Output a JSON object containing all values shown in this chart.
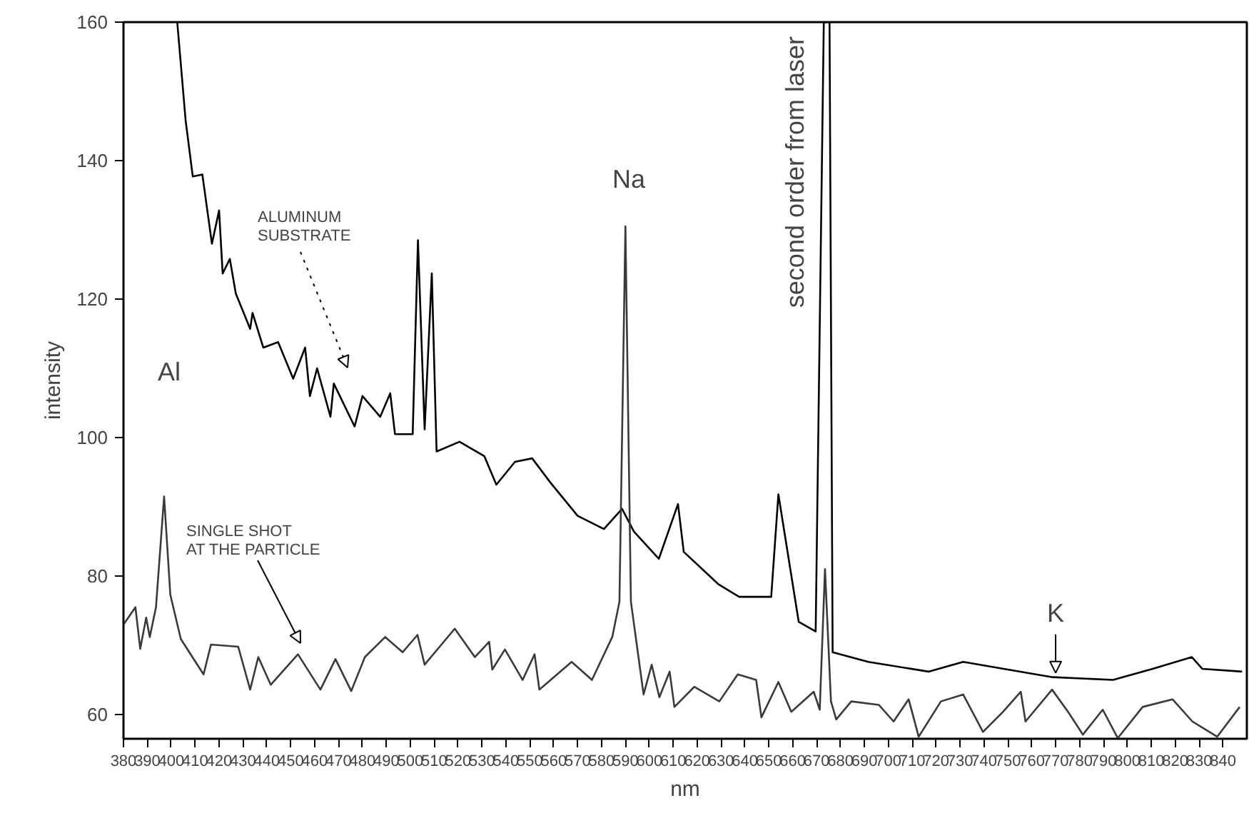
{
  "chart_data": {
    "type": "line",
    "xlabel": "nm",
    "ylabel": "intensity",
    "xlim": [
      380,
      850
    ],
    "ylim": [
      56.5,
      160
    ],
    "xticks": [
      380,
      390,
      400,
      410,
      420,
      430,
      440,
      450,
      460,
      470,
      480,
      490,
      500,
      510,
      520,
      530,
      540,
      550,
      560,
      570,
      580,
      590,
      600,
      610,
      620,
      630,
      640,
      650,
      660,
      670,
      680,
      690,
      700,
      710,
      720,
      730,
      740,
      750,
      760,
      770,
      780,
      790,
      800,
      810,
      820,
      830,
      840
    ],
    "yticks": [
      60,
      80,
      100,
      120,
      140,
      160
    ],
    "grid": false,
    "marker": "none",
    "line_style": "solid",
    "series": [
      {
        "color": "#000000",
        "x": [
          402.5,
          406,
          409,
          413,
          417,
          420,
          421.5,
          424.5,
          427,
          433,
          434,
          438.5,
          444.7,
          451,
          456,
          458,
          461,
          466.6,
          468,
          476.7,
          480,
          487.4,
          491.6,
          493.6,
          501,
          503.2,
          506,
          509,
          511,
          520.6,
          531,
          536,
          543.8,
          551,
          558.4,
          570,
          581,
          588.6,
          593.6,
          604,
          612,
          614.4,
          629,
          637.6,
          651,
          654,
          662.5,
          669.6,
          673,
          675.4,
          676.7,
          691.6,
          716.8,
          731.3,
          768.7,
          794,
          810.6,
          827,
          831.4,
          848
        ],
        "values": [
          160,
          145.8,
          137.7,
          138,
          128,
          132.8,
          123.7,
          125.8,
          120.8,
          115.7,
          118,
          113,
          113.8,
          108.5,
          113,
          106,
          110,
          103,
          107.8,
          101.6,
          106,
          103,
          106.4,
          100.5,
          100.5,
          128.5,
          101.2,
          123.7,
          98,
          99.4,
          97.3,
          93.2,
          96.5,
          97,
          93.6,
          88.7,
          86.8,
          89.7,
          86.4,
          82.5,
          90.4,
          83.5,
          78.8,
          77,
          77,
          91.8,
          73.4,
          72,
          160,
          160,
          69,
          67.6,
          66.2,
          67.6,
          65.4,
          65,
          66.6,
          68.3,
          66.6,
          66.2
        ]
      },
      {
        "color": "#3a3a3a",
        "x": [
          380,
          385,
          387,
          389.5,
          391,
          393.6,
          397,
          399.6,
          404,
          413.5,
          416.6,
          428,
          433,
          436.4,
          441.6,
          453,
          462.4,
          468.7,
          475.3,
          481,
          489.5,
          496.8,
          503,
          506,
          518.6,
          527,
          533,
          534.3,
          539.6,
          547,
          552,
          554,
          567.5,
          576,
          584.5,
          587.5,
          590,
          592.3,
          597.6,
          601,
          604.2,
          608.5,
          610.5,
          618.8,
          629.3,
          637,
          644.7,
          646.9,
          654,
          659.4,
          668.8,
          671.3,
          673.5,
          676,
          678.2,
          684.5,
          696,
          702.2,
          708.5,
          712.7,
          722,
          731.3,
          739.6,
          748,
          755.4,
          757.4,
          768.5,
          775.2,
          781.4,
          789.7,
          796,
          806.4,
          818.9,
          827.2,
          837.6,
          847
        ],
        "values": [
          73,
          75.5,
          69.5,
          74,
          71.2,
          75.5,
          91.5,
          77.3,
          70.9,
          65.8,
          70.1,
          69.8,
          63.6,
          68.3,
          64.3,
          68.7,
          63.6,
          68,
          63.4,
          68.3,
          71.2,
          69,
          71.5,
          67.2,
          72.4,
          68.3,
          70.5,
          66.5,
          69.4,
          65,
          68.7,
          63.6,
          67.6,
          65,
          71.2,
          76.3,
          130.5,
          76.3,
          62.9,
          67.2,
          62.5,
          66.2,
          61.1,
          64,
          61.9,
          65.8,
          65,
          59.6,
          64.7,
          60.4,
          63.3,
          60.7,
          81,
          61.9,
          59.3,
          61.9,
          61.4,
          59,
          62.2,
          56.8,
          61.9,
          62.9,
          57.5,
          60.4,
          63.3,
          59,
          63.6,
          60.4,
          57.1,
          60.7,
          56.6,
          61.1,
          62.2,
          59,
          56.8,
          61.1
        ]
      }
    ],
    "annotations": [
      "Al",
      "Na",
      {
        "text": "second order from laser",
        "x": 673,
        "y": 160
      },
      {
        "text": "K",
        "x": 770,
        "y": 65.4
      },
      "ALUMINUM\nSUBSTRATE",
      "SINGLE SHOT\nAT THE PARTICLE"
    ]
  }
}
